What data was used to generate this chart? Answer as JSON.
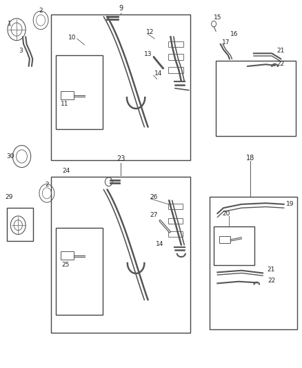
{
  "bg_color": "#ffffff",
  "line_color": "#555555",
  "label_color": "#222222",
  "fig_width": 4.38,
  "fig_height": 5.33,
  "dpi": 100
}
